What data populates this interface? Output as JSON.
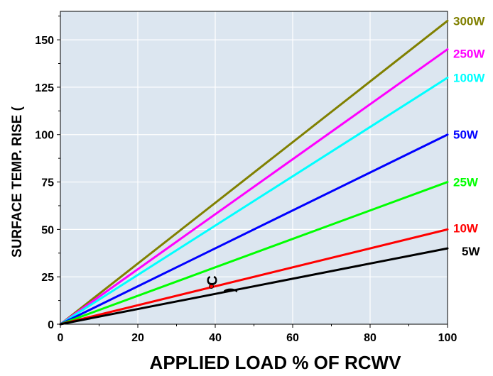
{
  "chart_data": {
    "type": "line",
    "title": "",
    "xlabel": "APPLIED LOAD % OF RCWV",
    "ylabel": "SURFACE TEMP. RISE (",
    "xlim": [
      0,
      100
    ],
    "ylim": [
      0,
      165
    ],
    "x_ticks": [
      0,
      20,
      40,
      60,
      80,
      100
    ],
    "y_ticks": [
      0,
      25,
      50,
      75,
      100,
      125,
      150
    ],
    "grid": true,
    "plot_background": "#dce6f0",
    "grid_color": "#ffffff",
    "series": [
      {
        "name": "300W",
        "color": "#808000",
        "x": [
          0,
          100
        ],
        "y": [
          0,
          160
        ]
      },
      {
        "name": "250W",
        "color": "#ff00ff",
        "x": [
          0,
          100
        ],
        "y": [
          0,
          145
        ]
      },
      {
        "name": "100W",
        "color": "#00ffff",
        "x": [
          0,
          100
        ],
        "y": [
          0,
          130
        ]
      },
      {
        "name": "50W",
        "color": "#0000ff",
        "x": [
          0,
          100
        ],
        "y": [
          0,
          100
        ]
      },
      {
        "name": "25W",
        "color": "#00ff00",
        "x": [
          0,
          100
        ],
        "y": [
          0,
          75
        ]
      },
      {
        "name": "10W",
        "color": "#ff0000",
        "x": [
          0,
          100
        ],
        "y": [
          0,
          50
        ]
      },
      {
        "name": "5W",
        "color": "#000000",
        "x": [
          0,
          100
        ],
        "y": [
          0,
          40
        ]
      }
    ],
    "annotations": [
      {
        "text": "C",
        "x": 40.5,
        "y": 23,
        "rotate": -90
      },
      {
        "text": ")",
        "x": 45,
        "y": 18,
        "rotate": -90
      }
    ],
    "markers": [
      {
        "x": 39,
        "y": 20,
        "color": "#ff0000"
      }
    ]
  }
}
